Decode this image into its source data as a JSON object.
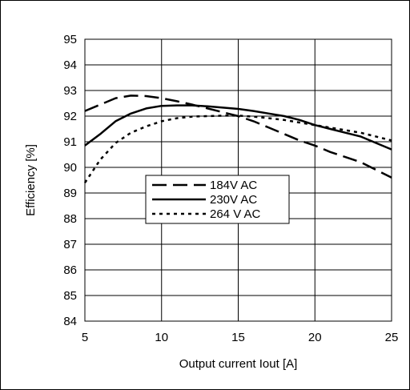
{
  "chart_data": {
    "type": "line",
    "title": "",
    "xlabel": "Output current Iout  [A]",
    "ylabel": "Efficiency [%]",
    "xlim": [
      5,
      25
    ],
    "ylim": [
      84,
      95
    ],
    "xticks": [
      5,
      10,
      15,
      20,
      25
    ],
    "yticks": [
      84,
      85,
      86,
      87,
      88,
      89,
      90,
      91,
      92,
      93,
      94,
      95
    ],
    "grid": true,
    "legend_position": "center-left",
    "series": [
      {
        "name": "184V AC",
        "style": "long-dash",
        "x": [
          5,
          6,
          7,
          8,
          9,
          10,
          11,
          12,
          13,
          14,
          15,
          16,
          17,
          18,
          19,
          20,
          21,
          22,
          23,
          24,
          25
        ],
        "y": [
          92.2,
          92.45,
          92.7,
          92.8,
          92.78,
          92.7,
          92.58,
          92.45,
          92.3,
          92.15,
          92.0,
          91.8,
          91.55,
          91.3,
          91.05,
          90.85,
          90.6,
          90.4,
          90.2,
          89.9,
          89.6
        ]
      },
      {
        "name": "230V AC",
        "style": "solid",
        "x": [
          5,
          6,
          7,
          8,
          9,
          10,
          11,
          12,
          13,
          14,
          15,
          16,
          17,
          18,
          19,
          20,
          21,
          22,
          23,
          24,
          25
        ],
        "y": [
          90.85,
          91.3,
          91.8,
          92.1,
          92.3,
          92.4,
          92.42,
          92.42,
          92.38,
          92.33,
          92.28,
          92.2,
          92.1,
          92.0,
          91.85,
          91.65,
          91.5,
          91.35,
          91.2,
          90.95,
          90.7
        ]
      },
      {
        "name": "264 V AC",
        "style": "dotted",
        "x": [
          5,
          6,
          7,
          8,
          9,
          10,
          11,
          12,
          13,
          14,
          15,
          16,
          17,
          18,
          19,
          20,
          21,
          22,
          23,
          24,
          25
        ],
        "y": [
          89.4,
          90.3,
          90.95,
          91.35,
          91.6,
          91.8,
          91.92,
          91.98,
          92.0,
          92.02,
          92.02,
          91.98,
          91.92,
          91.85,
          91.75,
          91.65,
          91.55,
          91.45,
          91.35,
          91.2,
          91.05
        ]
      }
    ]
  }
}
